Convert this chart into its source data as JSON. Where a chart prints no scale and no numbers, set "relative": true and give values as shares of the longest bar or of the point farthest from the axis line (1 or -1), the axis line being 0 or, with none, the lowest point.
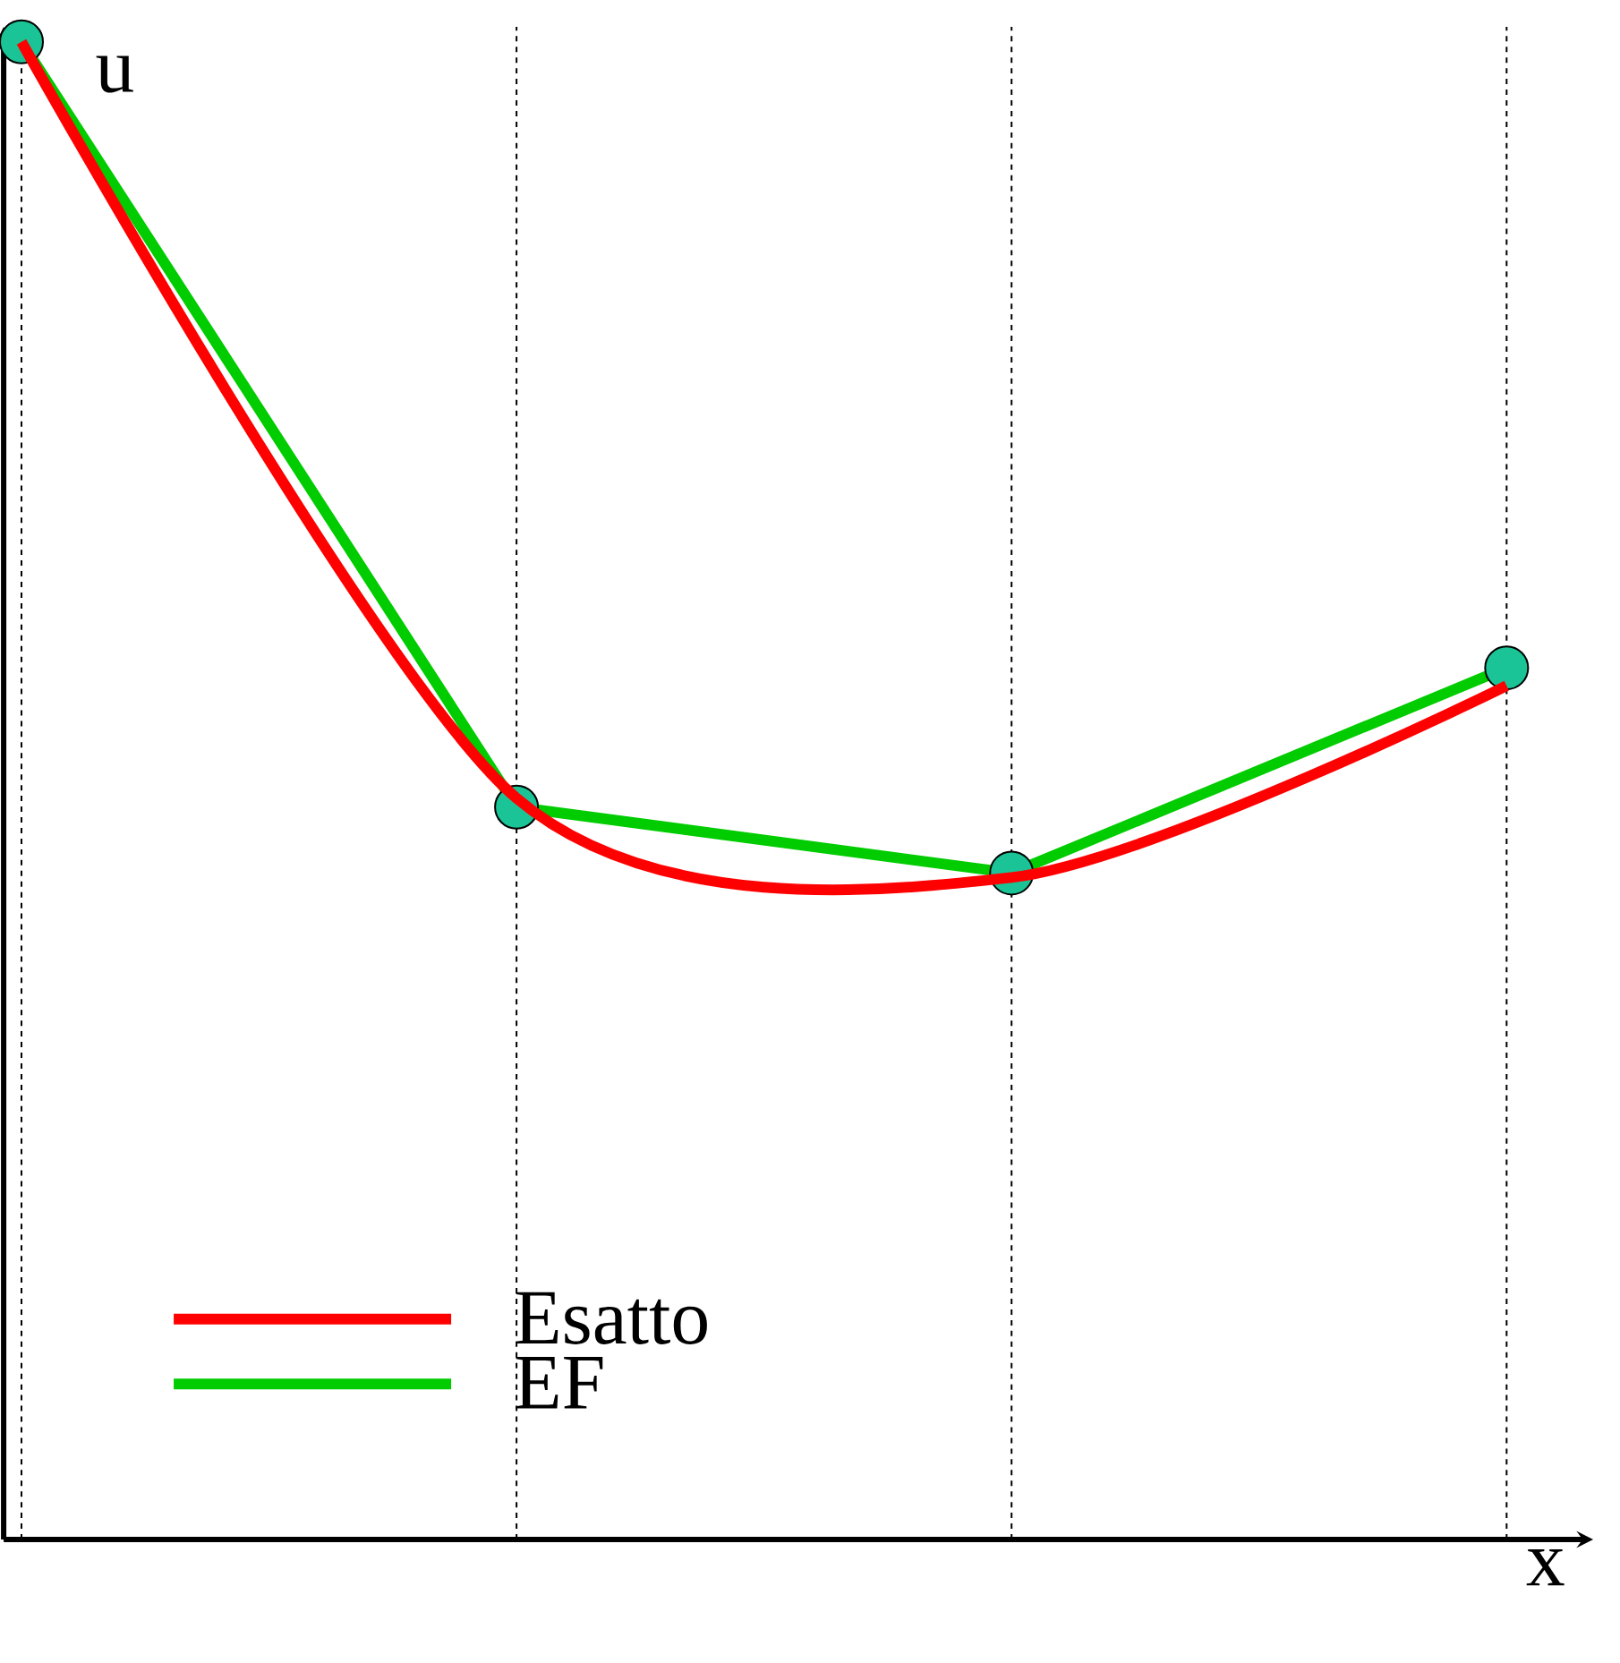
{
  "chart_data": {
    "type": "line",
    "relative": true,
    "xlabel": "x",
    "ylabel": "u",
    "legend": "bottom left",
    "grid": "x",
    "categories": [
      null,
      null,
      null,
      null
    ],
    "series": [
      {
        "name": "Esatto",
        "color": "#ff0000",
        "values": [
          1.0,
          0.495,
          0.442,
          0.57
        ]
      },
      {
        "name": "EF",
        "color": "#00cc00",
        "marker": "circle",
        "values": [
          1.0,
          0.489,
          0.445,
          0.582
        ]
      }
    ]
  }
}
